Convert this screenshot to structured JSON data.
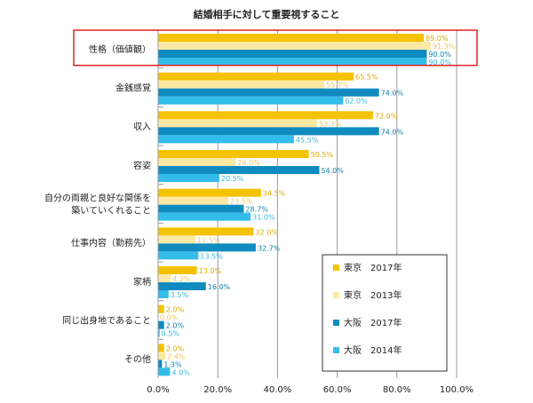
{
  "chart_data": {
    "type": "bar",
    "orientation": "horizontal",
    "title": "結婚相手に対して重要視すること",
    "xlabel": "",
    "ylabel": "",
    "xlim": [
      0,
      100
    ],
    "x_ticks": [
      "0.0%",
      "20.0%",
      "40.0%",
      "60.0%",
      "80.0%",
      "100.0%"
    ],
    "grid": "vertical",
    "legend_position": "bottom-right",
    "categories": [
      [
        "性格（価値観）"
      ],
      [
        "金銭感覚"
      ],
      [
        "収入"
      ],
      [
        "容姿"
      ],
      [
        "自分の両親と良好な関係を",
        "築いていくれること"
      ],
      [
        "仕事内容（勤務先）"
      ],
      [
        "家柄"
      ],
      [
        "同じ出身地であること"
      ],
      [
        "その他"
      ]
    ],
    "series": [
      {
        "name": "東京　2017年",
        "color": "#f5c200",
        "label_color": "#e0a800",
        "values": [
          89.0,
          65.5,
          72.0,
          50.5,
          34.5,
          32.0,
          13.0,
          2.0,
          2.0
        ],
        "labels": [
          "89.0%",
          "65.5%",
          "72.0%",
          "50.5%",
          "34.5%",
          "32.0%",
          "13.0%",
          "2.0%",
          "2.0%"
        ]
      },
      {
        "name": "東京　2013年",
        "color": "#fde9a3",
        "label_color": "#f0c860",
        "values": [
          91.3,
          55.7,
          53.3,
          26.0,
          23.5,
          12.5,
          4.2,
          0.0,
          2.4
        ],
        "labels": [
          "91.3%",
          "55.7%",
          "53.3%",
          "26.0%",
          "23.5%",
          "12.5%",
          "4.2%",
          "0.0%",
          "2.4%"
        ]
      },
      {
        "name": "大阪　2017年",
        "color": "#0f8bbf",
        "label_color": "#0f7fb0",
        "values": [
          90.0,
          74.0,
          74.0,
          54.0,
          28.7,
          32.7,
          16.0,
          2.0,
          1.3
        ],
        "labels": [
          "90.0%",
          "74.0%",
          "74.0%",
          "54.0%",
          "28.7%",
          "32.7%",
          "16.0%",
          "2.0%",
          "1.3%"
        ]
      },
      {
        "name": "大阪　2014年",
        "color": "#33bce9",
        "label_color": "#33b5e0",
        "values": [
          90.0,
          62.0,
          45.5,
          20.5,
          31.0,
          13.5,
          3.5,
          0.5,
          4.0
        ],
        "labels": [
          "90.0%",
          "62.0%",
          "45.5%",
          "20.5%",
          "31.0%",
          "13.5%",
          "3.5%",
          "0.5%",
          "4.0%"
        ]
      }
    ],
    "highlight_category_index": 0,
    "highlight_color": "#e02020"
  }
}
